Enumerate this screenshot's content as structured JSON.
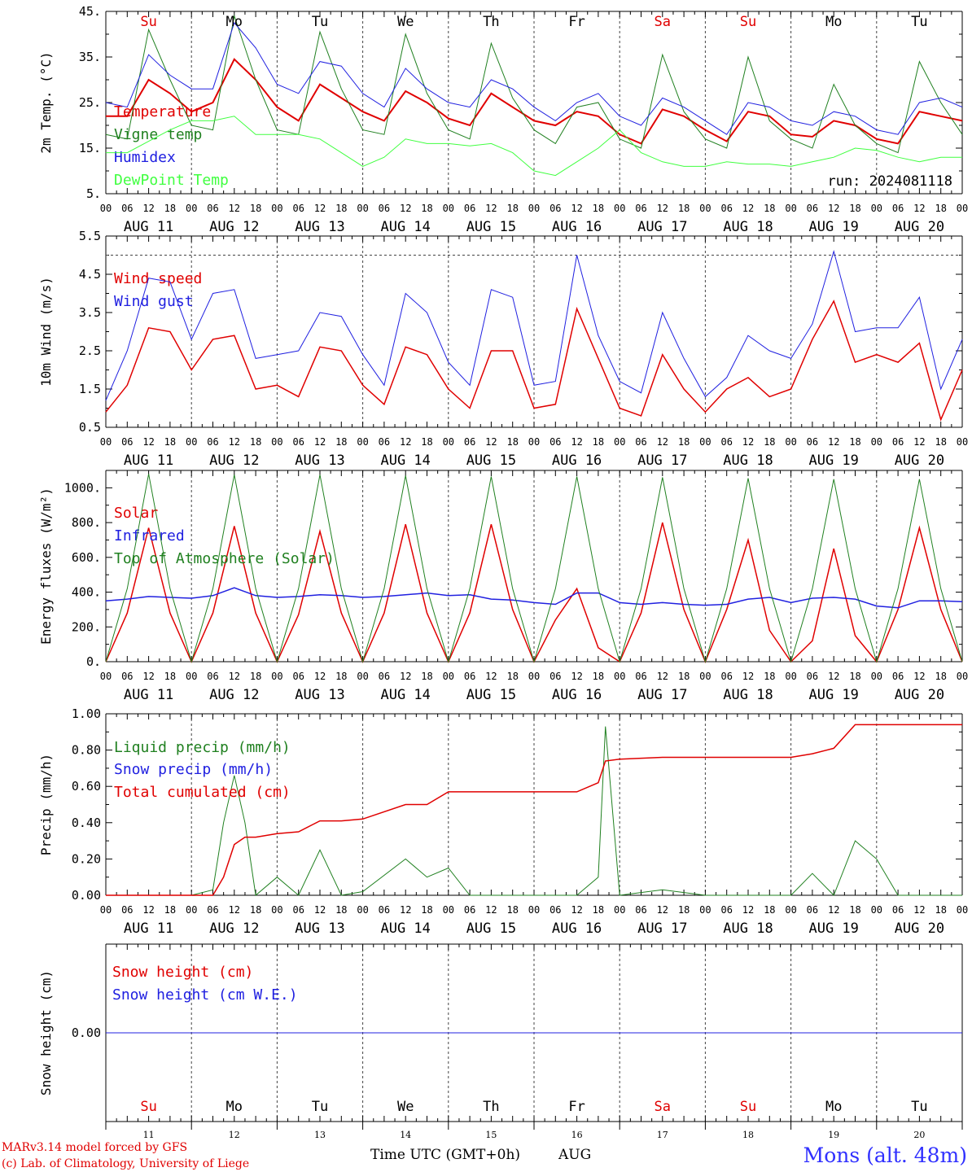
{
  "chart_data": [
    {
      "type": "line",
      "ylabel": "2m Temp. (°C)",
      "ylim": [
        5,
        45
      ],
      "yticks": [
        "5.",
        "15.",
        "25.",
        "35.",
        "45."
      ],
      "yticks_values": [
        5,
        15,
        25,
        35,
        45
      ],
      "day_labels": [
        "Su",
        "Mo",
        "Tu",
        "We",
        "Th",
        "Fr",
        "Sa",
        "Su",
        "Mo",
        "Tu"
      ],
      "day_label_colors": [
        "#e00000",
        "#000000",
        "#000000",
        "#000000",
        "#000000",
        "#000000",
        "#e00000",
        "#e00000",
        "#000000",
        "#000000"
      ],
      "run_label": "run: 2024081118",
      "x_hours": [
        0,
        6,
        12,
        18,
        24,
        30,
        36,
        42,
        48,
        54,
        60,
        66,
        72,
        78,
        84,
        90,
        96,
        102,
        108,
        114,
        120,
        126,
        132,
        138,
        144,
        150,
        156,
        162,
        168,
        174,
        180,
        186,
        192,
        198,
        204,
        210,
        216,
        222,
        228,
        234,
        240
      ],
      "series": [
        {
          "name": "Temperature",
          "color": "#e00000",
          "width": 2,
          "values": [
            22,
            22,
            30,
            27,
            23,
            25,
            34.5,
            30,
            24,
            21,
            29,
            26,
            23,
            21,
            27.5,
            25,
            21.5,
            20,
            27,
            24,
            21,
            20,
            23,
            22,
            18,
            16,
            23.5,
            22,
            19,
            16.5,
            23,
            22,
            18,
            17.5,
            21,
            20,
            17,
            16,
            23,
            22,
            21
          ]
        },
        {
          "name": "Vigne temp",
          "color": "#208020",
          "width": 1,
          "values": [
            18,
            17,
            41,
            30,
            20,
            19,
            44,
            30,
            19,
            18,
            40.5,
            28,
            19,
            18,
            40,
            27,
            19,
            17,
            38,
            26,
            19,
            16,
            24,
            25,
            17,
            15,
            35.5,
            23,
            17,
            15,
            35,
            21,
            17,
            15,
            29,
            20,
            16,
            14,
            34,
            25,
            18
          ]
        },
        {
          "name": "Humidex",
          "color": "#2020e0",
          "width": 1,
          "values": [
            25,
            24,
            35.5,
            31,
            28,
            28,
            42.5,
            37,
            29,
            27,
            34,
            33,
            27,
            24,
            32.5,
            28,
            25,
            24,
            30,
            28,
            24,
            21,
            25,
            27,
            22,
            20,
            26,
            24,
            21,
            18,
            25,
            24,
            21,
            20,
            23,
            22,
            19,
            18,
            25,
            26,
            24
          ]
        },
        {
          "name": "DewPoint Temp",
          "color": "#40ff40",
          "width": 1,
          "values": [
            14,
            14,
            16.5,
            19,
            21,
            21,
            22,
            18,
            18,
            18,
            17,
            14,
            11,
            13,
            17,
            16,
            16,
            15.5,
            16,
            14,
            10,
            9,
            12,
            15,
            19,
            14,
            12,
            11,
            11,
            12,
            11.5,
            11.5,
            11,
            12,
            13,
            15,
            14.5,
            13,
            12,
            13,
            13
          ]
        }
      ]
    },
    {
      "type": "line",
      "ylabel": "10m Wind (m/s)",
      "ylim": [
        0.5,
        5.5
      ],
      "yticks": [
        "0.5",
        "1.5",
        "2.5",
        "3.5",
        "4.5",
        "5.5"
      ],
      "yticks_values": [
        0.5,
        1.5,
        2.5,
        3.5,
        4.5,
        5.5
      ],
      "reference_line": 5,
      "x_hours": [
        0,
        6,
        12,
        18,
        24,
        30,
        36,
        42,
        48,
        54,
        60,
        66,
        72,
        78,
        84,
        90,
        96,
        102,
        108,
        114,
        120,
        126,
        132,
        138,
        144,
        150,
        156,
        162,
        168,
        174,
        180,
        186,
        192,
        198,
        204,
        210,
        216,
        222,
        228,
        234,
        240
      ],
      "series": [
        {
          "name": "Wind speed",
          "color": "#e00000",
          "width": 1.5,
          "values": [
            0.9,
            1.6,
            3.1,
            3,
            2,
            2.8,
            2.9,
            1.5,
            1.6,
            1.3,
            2.6,
            2.5,
            1.6,
            1.1,
            2.6,
            2.4,
            1.5,
            1,
            2.5,
            2.5,
            1,
            1.1,
            3.6,
            2.3,
            1,
            0.8,
            2.4,
            1.5,
            0.9,
            1.5,
            1.8,
            1.3,
            1.5,
            2.8,
            3.8,
            2.2,
            2.4,
            2.2,
            2.7,
            0.7,
            2
          ]
        },
        {
          "name": "Wind gust",
          "color": "#2020e0",
          "width": 1,
          "values": [
            1.2,
            2.5,
            4.4,
            4.3,
            2.8,
            4,
            4.1,
            2.3,
            2.4,
            2.5,
            3.5,
            3.4,
            2.4,
            1.6,
            4,
            3.5,
            2.2,
            1.6,
            4.1,
            3.9,
            1.6,
            1.7,
            5,
            2.9,
            1.7,
            1.4,
            3.5,
            2.3,
            1.3,
            1.8,
            2.9,
            2.5,
            2.3,
            3.2,
            5.1,
            3,
            3.1,
            3.1,
            3.9,
            1.5,
            2.8
          ]
        }
      ]
    },
    {
      "type": "line",
      "ylabel": "Energy fluxes (W/m²)",
      "ylim": [
        0,
        1100
      ],
      "yticks": [
        "0.",
        "200.",
        "400.",
        "600.",
        "800.",
        "1000."
      ],
      "yticks_values": [
        0,
        200,
        400,
        600,
        800,
        1000
      ],
      "x_hours": [
        0,
        6,
        12,
        18,
        24,
        30,
        36,
        42,
        48,
        54,
        60,
        66,
        72,
        78,
        84,
        90,
        96,
        102,
        108,
        114,
        120,
        126,
        132,
        138,
        144,
        150,
        156,
        162,
        168,
        174,
        180,
        186,
        192,
        198,
        204,
        210,
        216,
        222,
        228,
        234,
        240
      ],
      "series": [
        {
          "name": "Solar",
          "color": "#e00000",
          "width": 1.5,
          "values": [
            0,
            280,
            770,
            280,
            0,
            280,
            780,
            280,
            0,
            270,
            750,
            280,
            0,
            280,
            790,
            280,
            0,
            280,
            790,
            300,
            0,
            240,
            420,
            80,
            0,
            280,
            800,
            300,
            0,
            300,
            700,
            180,
            0,
            120,
            650,
            150,
            0,
            300,
            770,
            300,
            0
          ]
        },
        {
          "name": "Infrared",
          "color": "#2020e0",
          "width": 1.5,
          "values": [
            350,
            360,
            375,
            370,
            365,
            380,
            425,
            380,
            370,
            375,
            385,
            380,
            370,
            375,
            385,
            395,
            380,
            385,
            360,
            355,
            340,
            330,
            395,
            395,
            340,
            330,
            340,
            330,
            325,
            330,
            360,
            370,
            340,
            365,
            370,
            360,
            320,
            310,
            350,
            350,
            345
          ]
        },
        {
          "name": "Top of Atmosphere (Solar)",
          "color": "#208020",
          "width": 1,
          "values": [
            0,
            420,
            1080,
            420,
            0,
            420,
            1075,
            420,
            0,
            420,
            1075,
            420,
            0,
            420,
            1070,
            420,
            0,
            420,
            1065,
            420,
            0,
            420,
            1065,
            420,
            0,
            420,
            1060,
            420,
            0,
            420,
            1055,
            420,
            0,
            420,
            1050,
            420,
            0,
            420,
            1050,
            420,
            0
          ]
        }
      ]
    },
    {
      "type": "line",
      "ylabel": "Precip (mm/h)",
      "ylim": [
        0,
        1.0
      ],
      "yticks": [
        "0.00",
        "0.20",
        "0.40",
        "0.60",
        "0.80",
        "1.00"
      ],
      "yticks_values": [
        0,
        0.2,
        0.4,
        0.6,
        0.8,
        1.0
      ],
      "x_hours": [
        0,
        12,
        24,
        30,
        33,
        36,
        39,
        42,
        48,
        54,
        60,
        66,
        72,
        84,
        90,
        96,
        102,
        108,
        120,
        132,
        138,
        140,
        144,
        156,
        168,
        192,
        198,
        204,
        210,
        216,
        222,
        240
      ],
      "series": [
        {
          "name": "Liquid precip (mm/h)",
          "color": "#208020",
          "width": 1,
          "values": [
            0,
            0,
            0,
            0.03,
            0.4,
            0.66,
            0.4,
            0,
            0.1,
            0,
            0.25,
            0,
            0.02,
            0.2,
            0.1,
            0.15,
            0,
            0,
            0,
            0,
            0.1,
            0.93,
            0,
            0.03,
            0,
            0,
            0.12,
            0,
            0.3,
            0.2,
            0,
            0
          ]
        },
        {
          "name": "Snow precip (mm/h)",
          "color": "#2020e0",
          "width": 1,
          "values": []
        },
        {
          "name": "Total cumulated (cm)",
          "color": "#e00000",
          "width": 1.5,
          "values": [
            0,
            0,
            0,
            0,
            0.1,
            0.28,
            0.32,
            0.32,
            0.34,
            0.35,
            0.41,
            0.41,
            0.42,
            0.5,
            0.5,
            0.57,
            0.57,
            0.57,
            0.57,
            0.57,
            0.62,
            0.74,
            0.75,
            0.76,
            0.76,
            0.76,
            0.78,
            0.81,
            0.94,
            0.94,
            0.94,
            0.94
          ]
        }
      ]
    },
    {
      "type": "line",
      "ylabel": "Snow height (cm)",
      "ylim": [
        -1,
        1
      ],
      "yticks": [
        "0.00"
      ],
      "yticks_values": [
        0
      ],
      "x_hours": [
        0,
        240
      ],
      "series": [
        {
          "name": "Snow height (cm)",
          "color": "#e00000",
          "width": 1,
          "values": [
            0,
            0
          ]
        },
        {
          "name": "Snow height (cm W.E.)",
          "color": "#2020e0",
          "width": 1,
          "values": [
            0,
            0
          ]
        }
      ]
    }
  ],
  "hour_labels": [
    "00",
    "06",
    "12",
    "18"
  ],
  "hour_label_end": "00",
  "date_labels": [
    "AUG 11",
    "AUG 12",
    "AUG 13",
    "AUG 14",
    "AUG 15",
    "AUG 16",
    "AUG 17",
    "AUG 18",
    "AUG 19",
    "AUG 20"
  ],
  "bottom_day_numbers": [
    "11",
    "12",
    "13",
    "14",
    "15",
    "16",
    "17",
    "18",
    "19",
    "20"
  ],
  "footer": {
    "model_line": "MARv3.14 model forced by GFS",
    "copyright_line": "(c) Lab. of Climatology, University of Liege",
    "x_title": "Time UTC (GMT+0h)",
    "month": "AUG",
    "station": "Mons (alt. 48m)"
  }
}
